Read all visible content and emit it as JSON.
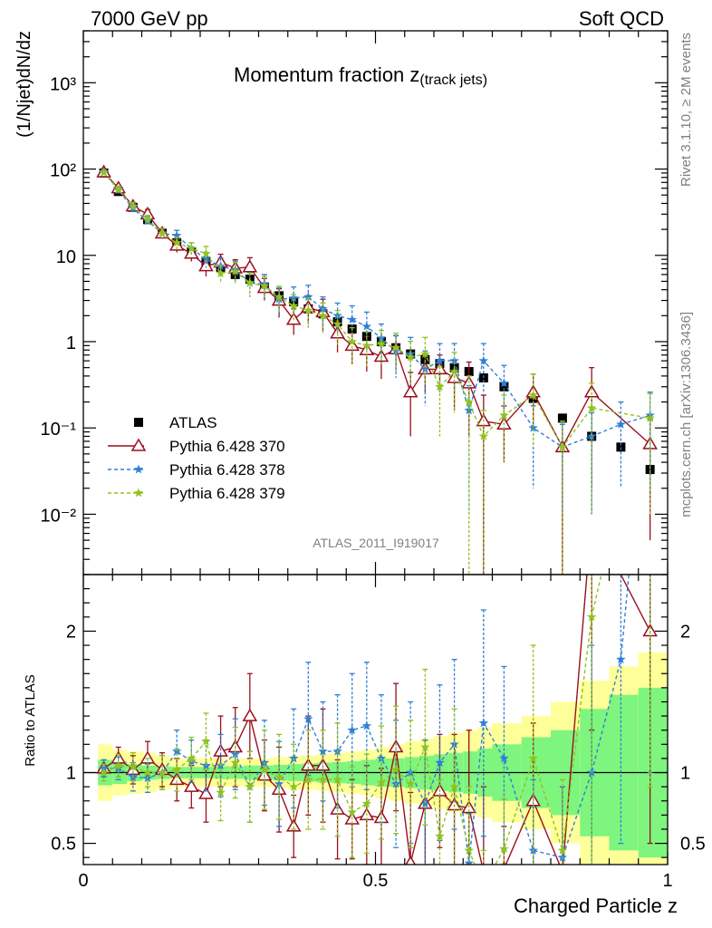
{
  "header": {
    "left": "7000 GeV pp",
    "right": "Soft QCD"
  },
  "main_title": {
    "text": "Momentum fraction z",
    "subscript": "(track jets)"
  },
  "analysis_label": "ATLAS_2011_I919017",
  "side_labels": {
    "rivet": "Rivet 3.1.10, ≥ 2M events",
    "mcplots": "mcplots.cern.ch [arXiv:1306.3436]"
  },
  "chart_data": [
    {
      "type": "scatter",
      "panel": "main",
      "ylabel": "(1/Njet)dN/dz",
      "xlim": [
        0,
        1
      ],
      "ylim": [
        0.002,
        4000
      ],
      "yscale": "log",
      "ytick_labels": [
        "10⁻²",
        "10⁻¹",
        "1",
        "10",
        "10²",
        "10³"
      ],
      "ytick_values": [
        0.01,
        0.1,
        1,
        10,
        100,
        1000
      ],
      "legend_position": "left-middle",
      "legend": [
        "ATLAS",
        "Pythia 6.428 370",
        "Pythia 6.428 378",
        "Pythia 6.428 379"
      ],
      "series": [
        {
          "name": "ATLAS",
          "style": "black-squares",
          "color": "#000000",
          "x": [
            0.035,
            0.06,
            0.085,
            0.11,
            0.135,
            0.16,
            0.185,
            0.21,
            0.235,
            0.26,
            0.285,
            0.31,
            0.335,
            0.36,
            0.385,
            0.41,
            0.435,
            0.46,
            0.485,
            0.51,
            0.535,
            0.56,
            0.585,
            0.61,
            0.635,
            0.66,
            0.685,
            0.72,
            0.77,
            0.82,
            0.87,
            0.92,
            0.97
          ],
          "y": [
            90,
            55,
            36,
            26,
            18,
            14,
            11,
            8.5,
            7.2,
            6.0,
            5.3,
            4.3,
            3.4,
            2.9,
            2.4,
            2.1,
            1.7,
            1.4,
            1.15,
            1.0,
            0.85,
            0.72,
            0.62,
            0.56,
            0.5,
            0.45,
            0.38,
            0.3,
            0.22,
            0.13,
            0.08,
            0.06,
            0.033
          ]
        },
        {
          "name": "Pythia 6.428 370",
          "style": "solid-triangles",
          "color": "#990f1f",
          "x": [
            0.035,
            0.06,
            0.085,
            0.11,
            0.135,
            0.16,
            0.185,
            0.21,
            0.235,
            0.26,
            0.285,
            0.31,
            0.335,
            0.36,
            0.385,
            0.41,
            0.435,
            0.46,
            0.485,
            0.51,
            0.535,
            0.56,
            0.585,
            0.61,
            0.635,
            0.66,
            0.685,
            0.72,
            0.77,
            0.82,
            0.87,
            0.97
          ],
          "y": [
            92,
            60,
            37,
            30,
            18,
            13,
            10.5,
            7.5,
            8.3,
            7.1,
            7.3,
            4.2,
            3.0,
            1.8,
            2.5,
            2.2,
            1.25,
            0.9,
            0.8,
            0.67,
            0.82,
            0.26,
            0.48,
            0.48,
            0.38,
            0.33,
            0.12,
            0.11,
            0.26,
            0.06,
            0.26,
            0.065
          ],
          "err": [
            5,
            5,
            4,
            4,
            2.5,
            2.2,
            2,
            1.8,
            2,
            1.8,
            2.1,
            1.2,
            1.1,
            0.6,
            0.9,
            0.9,
            0.5,
            0.35,
            0.35,
            0.3,
            0.35,
            0.18,
            0.22,
            0.22,
            0.22,
            0.25,
            0.12,
            0.07,
            0.16,
            0.06,
            0.24,
            0.06
          ]
        },
        {
          "name": "Pythia 6.428 378",
          "style": "dashed-stars",
          "color": "#2f7fd6",
          "x": [
            0.035,
            0.06,
            0.085,
            0.11,
            0.135,
            0.16,
            0.185,
            0.21,
            0.235,
            0.26,
            0.285,
            0.31,
            0.335,
            0.36,
            0.385,
            0.41,
            0.435,
            0.46,
            0.485,
            0.51,
            0.535,
            0.56,
            0.585,
            0.61,
            0.635,
            0.66,
            0.685,
            0.72,
            0.77,
            0.82,
            0.87,
            0.92,
            0.97
          ],
          "y": [
            93,
            57,
            35,
            25,
            18,
            17,
            12,
            9,
            7.5,
            6.8,
            4.8,
            4.6,
            3.1,
            3.2,
            3.3,
            2.4,
            2.0,
            1.8,
            1.5,
            1.1,
            0.78,
            0.72,
            0.48,
            0.6,
            0.6,
            0.16,
            0.6,
            0.33,
            0.1,
            0.06,
            0.08,
            0.11,
            0.14
          ],
          "err": [
            5,
            5,
            4,
            3,
            2.5,
            2.5,
            2,
            1.8,
            1.8,
            1.8,
            1.5,
            1.4,
            1.1,
            1.1,
            1.2,
            0.9,
            0.8,
            0.8,
            0.7,
            0.5,
            0.4,
            0.4,
            0.3,
            0.35,
            0.35,
            0.15,
            0.35,
            0.2,
            0.08,
            0.05,
            0.07,
            0.09,
            0.12
          ]
        },
        {
          "name": "Pythia 6.428 379",
          "style": "dashed-stars",
          "color": "#8fc31f",
          "x": [
            0.035,
            0.06,
            0.085,
            0.11,
            0.135,
            0.16,
            0.185,
            0.21,
            0.235,
            0.26,
            0.285,
            0.31,
            0.335,
            0.36,
            0.385,
            0.41,
            0.435,
            0.46,
            0.485,
            0.51,
            0.535,
            0.56,
            0.585,
            0.61,
            0.635,
            0.66,
            0.685,
            0.72,
            0.77,
            0.82,
            0.87,
            0.97
          ],
          "y": [
            91,
            58,
            37,
            26,
            18,
            14,
            12,
            10.5,
            6.2,
            6.5,
            4.8,
            4.4,
            3.3,
            2.6,
            2.3,
            2.0,
            1.6,
            1.0,
            0.9,
            0.95,
            0.85,
            0.66,
            0.72,
            0.3,
            0.45,
            0.2,
            0.08,
            0.14,
            0.24,
            0.06,
            0.17,
            0.13
          ],
          "err": [
            5,
            5,
            4,
            3,
            2.5,
            2.2,
            2,
            2.2,
            1.5,
            1.8,
            1.4,
            1.3,
            1.1,
            0.9,
            0.9,
            0.8,
            0.7,
            0.45,
            0.4,
            0.4,
            0.4,
            0.35,
            0.4,
            0.22,
            0.3,
            0.2,
            0.08,
            0.1,
            0.18,
            0.06,
            0.16,
            0.12
          ]
        }
      ]
    },
    {
      "type": "line",
      "panel": "ratio",
      "ylabel": "Ratio to ATLAS",
      "xlabel": "Charged Particle z",
      "xlim": [
        0,
        1
      ],
      "ylim": [
        0.35,
        2.4
      ],
      "ytick_labels": [
        "0.5",
        "1",
        "2"
      ],
      "ytick_values": [
        0.5,
        1,
        2
      ],
      "xtick_labels": [
        "0",
        "0.5",
        "1"
      ],
      "xtick_values": [
        0,
        0.5,
        1
      ],
      "reference_line": 1,
      "bands": {
        "edges": [
          0.025,
          0.05,
          0.075,
          0.1,
          0.125,
          0.15,
          0.175,
          0.2,
          0.225,
          0.25,
          0.275,
          0.3,
          0.325,
          0.35,
          0.375,
          0.4,
          0.425,
          0.45,
          0.475,
          0.5,
          0.525,
          0.55,
          0.575,
          0.6,
          0.625,
          0.65,
          0.675,
          0.7,
          0.75,
          0.8,
          0.85,
          0.9,
          0.95,
          1.0
        ],
        "green_half_width": [
          0.09,
          0.08,
          0.06,
          0.05,
          0.045,
          0.04,
          0.04,
          0.04,
          0.045,
          0.045,
          0.05,
          0.05,
          0.055,
          0.06,
          0.065,
          0.07,
          0.075,
          0.08,
          0.09,
          0.1,
          0.1,
          0.11,
          0.12,
          0.13,
          0.14,
          0.15,
          0.17,
          0.2,
          0.25,
          0.3,
          0.45,
          0.55,
          0.6
        ],
        "yellow_half_width": [
          0.2,
          0.16,
          0.15,
          0.14,
          0.12,
          0.1,
          0.1,
          0.1,
          0.1,
          0.1,
          0.1,
          0.1,
          0.11,
          0.12,
          0.12,
          0.13,
          0.14,
          0.15,
          0.16,
          0.18,
          0.2,
          0.22,
          0.24,
          0.26,
          0.28,
          0.3,
          0.32,
          0.35,
          0.4,
          0.5,
          0.65,
          0.75,
          0.85
        ],
        "green_color": "#7ef57e",
        "yellow_color": "#ffff99"
      },
      "series": [
        {
          "name": "Pythia 6.428 370",
          "color": "#990f1f",
          "style": "solid-triangles",
          "x": [
            0.035,
            0.06,
            0.085,
            0.11,
            0.135,
            0.16,
            0.185,
            0.21,
            0.235,
            0.26,
            0.285,
            0.31,
            0.335,
            0.36,
            0.385,
            0.41,
            0.435,
            0.46,
            0.485,
            0.51,
            0.535,
            0.56,
            0.585,
            0.61,
            0.635,
            0.66,
            0.685,
            0.72,
            0.77,
            0.82,
            0.87,
            0.97
          ],
          "y": [
            1.03,
            1.1,
            1.02,
            1.1,
            1.02,
            0.95,
            0.9,
            0.85,
            1.15,
            1.18,
            1.4,
            0.98,
            0.88,
            0.62,
            1.05,
            1.05,
            0.74,
            0.67,
            0.7,
            0.68,
            1.18,
            0.36,
            0.78,
            0.87,
            0.77,
            0.75,
            0.3,
            0.32,
            0.8,
            0.3,
            2.8,
            2.0
          ],
          "err": [
            0.06,
            0.08,
            0.1,
            0.12,
            0.12,
            0.15,
            0.15,
            0.2,
            0.25,
            0.28,
            0.3,
            0.25,
            0.3,
            0.22,
            0.35,
            0.4,
            0.35,
            0.28,
            0.35,
            0.35,
            0.45,
            0.5,
            0.45,
            0.4,
            0.5,
            0.55,
            0.6,
            0.3,
            0.55,
            0.6,
            1.5,
            1.5
          ]
        },
        {
          "name": "Pythia 6.428 378",
          "color": "#2f7fd6",
          "style": "dashed-stars",
          "x": [
            0.035,
            0.06,
            0.085,
            0.11,
            0.135,
            0.16,
            0.185,
            0.21,
            0.235,
            0.26,
            0.285,
            0.31,
            0.335,
            0.36,
            0.385,
            0.41,
            0.435,
            0.46,
            0.485,
            0.51,
            0.535,
            0.56,
            0.585,
            0.61,
            0.635,
            0.66,
            0.685,
            0.72,
            0.77,
            0.82,
            0.87,
            0.92,
            0.97
          ],
          "y": [
            1.03,
            1.03,
            0.97,
            0.96,
            1.0,
            1.15,
            1.08,
            1.05,
            1.05,
            1.13,
            0.9,
            1.07,
            0.92,
            1.1,
            1.38,
            1.15,
            1.15,
            1.3,
            1.33,
            1.1,
            0.92,
            1.0,
            0.78,
            1.07,
            1.2,
            0.36,
            1.35,
            1.1,
            0.45,
            0.4,
            1.0,
            1.8,
            4.0
          ],
          "err": [
            0.06,
            0.08,
            0.1,
            0.1,
            0.12,
            0.15,
            0.15,
            0.18,
            0.22,
            0.25,
            0.25,
            0.3,
            0.3,
            0.35,
            0.4,
            0.35,
            0.4,
            0.4,
            0.45,
            0.45,
            0.45,
            0.5,
            0.45,
            0.55,
            0.6,
            0.35,
            0.8,
            0.65,
            0.5,
            0.5,
            0.9,
            1.3,
            3.0
          ]
        },
        {
          "name": "Pythia 6.428 379",
          "color": "#8fc31f",
          "style": "dashed-stars",
          "x": [
            0.035,
            0.06,
            0.085,
            0.11,
            0.135,
            0.16,
            0.185,
            0.21,
            0.235,
            0.26,
            0.285,
            0.31,
            0.335,
            0.36,
            0.385,
            0.41,
            0.435,
            0.46,
            0.485,
            0.51,
            0.535,
            0.56,
            0.585,
            0.61,
            0.635,
            0.66,
            0.685,
            0.72,
            0.77,
            0.82,
            0.87,
            0.97
          ],
          "y": [
            1.0,
            1.05,
            1.04,
            1.0,
            1.0,
            1.02,
            1.1,
            1.22,
            0.86,
            1.07,
            0.9,
            1.02,
            0.97,
            0.9,
            0.95,
            0.95,
            0.95,
            0.72,
            0.78,
            0.93,
            1.02,
            0.92,
            1.18,
            0.55,
            0.9,
            0.45,
            0.2,
            0.46,
            1.1,
            0.45,
            2.1,
            3.9
          ],
          "err": [
            0.06,
            0.08,
            0.1,
            0.1,
            0.12,
            0.15,
            0.15,
            0.2,
            0.2,
            0.25,
            0.25,
            0.28,
            0.3,
            0.3,
            0.35,
            0.35,
            0.4,
            0.32,
            0.35,
            0.4,
            0.45,
            0.45,
            0.55,
            0.4,
            0.55,
            0.45,
            0.25,
            0.35,
            0.8,
            0.5,
            1.8,
            3.0
          ]
        }
      ]
    }
  ]
}
